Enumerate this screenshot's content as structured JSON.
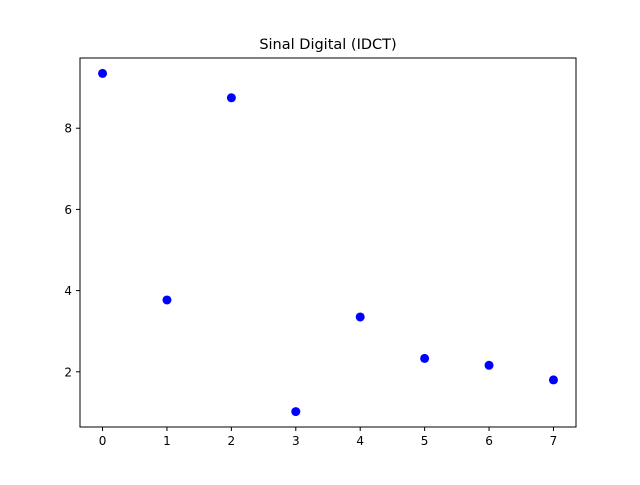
{
  "chart_data": {
    "type": "scatter",
    "title": "Sinal Digital (IDCT)",
    "xlabel": "",
    "ylabel": "",
    "x": [
      0,
      1,
      2,
      3,
      4,
      5,
      6,
      7
    ],
    "y": [
      9.35,
      3.77,
      8.75,
      1.02,
      3.35,
      2.33,
      2.16,
      1.8
    ],
    "xlim": [
      -0.35,
      7.35
    ],
    "ylim": [
      0.64,
      9.73
    ],
    "xticks": [
      0,
      1,
      2,
      3,
      4,
      5,
      6,
      7
    ],
    "yticks": [
      2,
      4,
      6,
      8
    ],
    "xtick_labels": [
      "0",
      "1",
      "2",
      "3",
      "4",
      "5",
      "6",
      "7"
    ],
    "ytick_labels": [
      "2",
      "4",
      "6",
      "8"
    ],
    "marker_color": "#0000ff",
    "grid": false,
    "legend": "none"
  }
}
